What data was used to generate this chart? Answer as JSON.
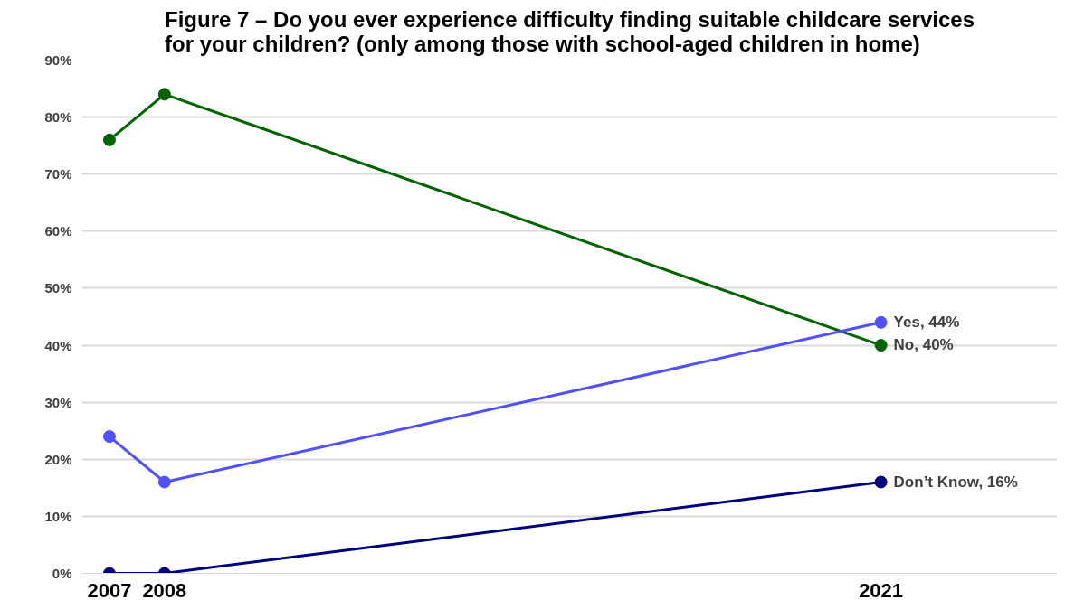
{
  "chart_data": {
    "type": "line",
    "title": "Figure 7 – Do you ever experience difficulty finding suitable childcare services for your children? (only among those with school-aged children in home)",
    "x": [
      2007,
      2008,
      2021
    ],
    "xlim": [
      2006.5,
      2024.2
    ],
    "xticks": [
      2007,
      2008,
      2021
    ],
    "ylim": [
      0,
      90
    ],
    "yticks": [
      {
        "value": 0,
        "label": "0%"
      },
      {
        "value": 10,
        "label": "10%"
      },
      {
        "value": 20,
        "label": "20%"
      },
      {
        "value": 30,
        "label": "30%"
      },
      {
        "value": 40,
        "label": "40%"
      },
      {
        "value": 50,
        "label": "50%"
      },
      {
        "value": 60,
        "label": "60%"
      },
      {
        "value": 70,
        "label": "70%"
      },
      {
        "value": 80,
        "label": "80%"
      },
      {
        "value": 90,
        "label": "90%"
      }
    ],
    "grid": "y",
    "marker": "circle",
    "line_style": "solid",
    "series": [
      {
        "color": "#006400",
        "values": [
          76,
          84,
          40
        ],
        "value_labels": [
          null,
          null,
          "No, 40%"
        ]
      },
      {
        "color": "#5050ff",
        "values": [
          24,
          16,
          44
        ],
        "value_labels": [
          null,
          null,
          "Yes, 44%"
        ]
      },
      {
        "color": "#000080",
        "values": [
          0,
          0,
          16
        ],
        "value_labels": [
          null,
          null,
          "Don’t Know, 16%"
        ]
      }
    ]
  }
}
